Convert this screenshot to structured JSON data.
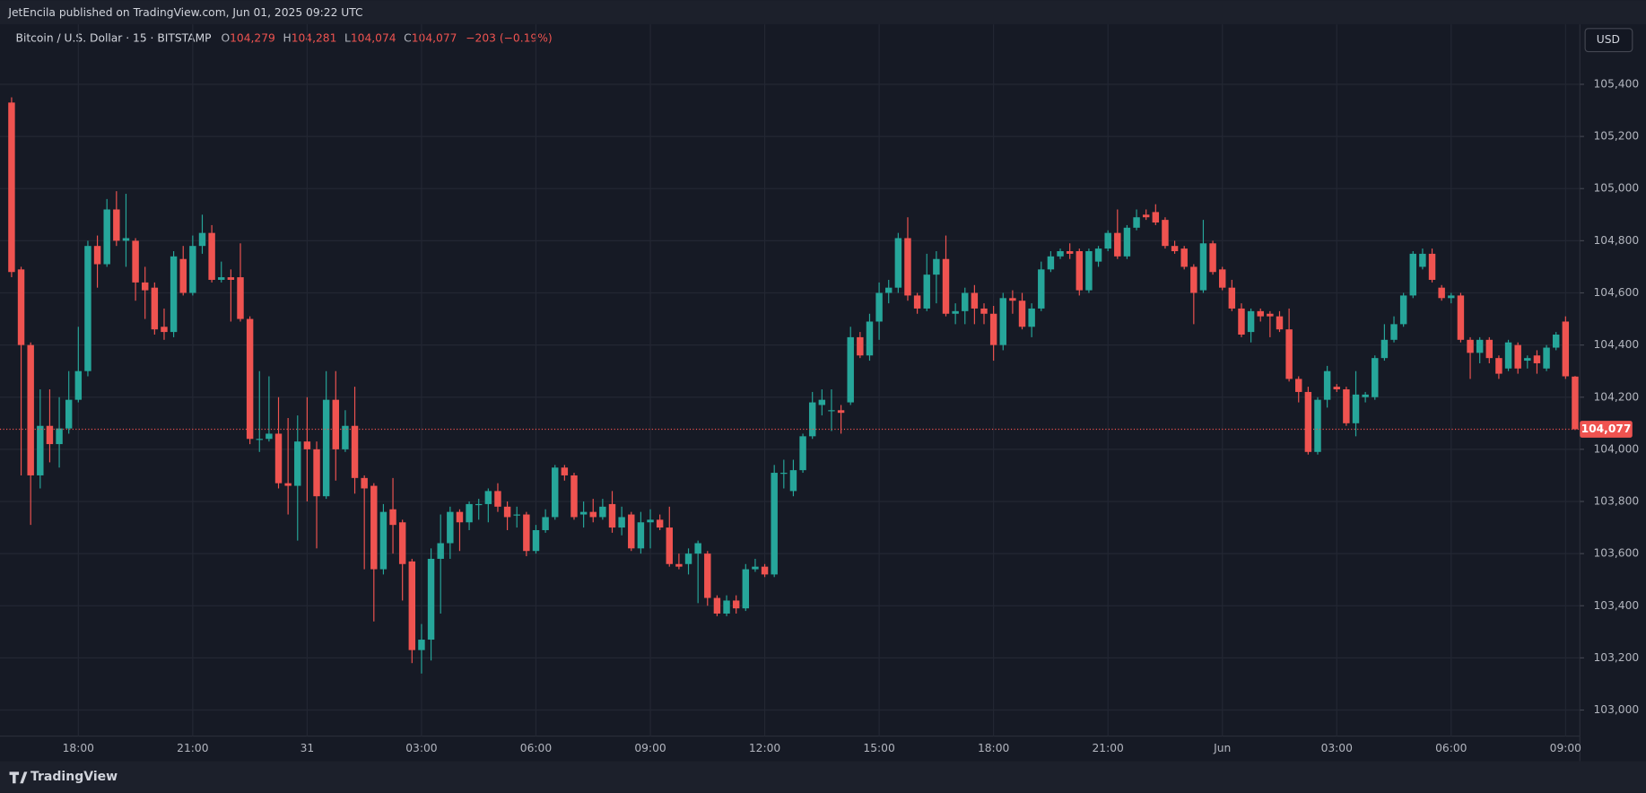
{
  "header": {
    "publisher": "JetEncila published on TradingView.com, Jun 01, 2025 09:22 UTC"
  },
  "legend": {
    "symbol": "Bitcoin / U.S. Dollar · 15 · BITSTAMP",
    "open_key": "O",
    "open": "104,279",
    "high_key": "H",
    "high": "104,281",
    "low_key": "L",
    "low": "104,074",
    "close_key": "C",
    "close": "104,077",
    "change": "−203 (−0.19%)"
  },
  "currency_button": "USD",
  "footer": {
    "brand": "TradingView"
  },
  "chart_data": {
    "type": "candlestick",
    "up_color": "#26a69a",
    "down_color": "#ef5350",
    "grid": true,
    "ylim": [
      102900,
      105630
    ],
    "yticks": [
      {
        "value": 103000,
        "label": "103,000"
      },
      {
        "value": 103200,
        "label": "103,200"
      },
      {
        "value": 103400,
        "label": "103,400"
      },
      {
        "value": 103600,
        "label": "103,600"
      },
      {
        "value": 103800,
        "label": "103,800"
      },
      {
        "value": 104000,
        "label": "104,000"
      },
      {
        "value": 104200,
        "label": "104,200"
      },
      {
        "value": 104400,
        "label": "104,400"
      },
      {
        "value": 104600,
        "label": "104,600"
      },
      {
        "value": 104800,
        "label": "104,800"
      },
      {
        "value": 105000,
        "label": "105,000"
      },
      {
        "value": 105200,
        "label": "105,200"
      },
      {
        "value": 105400,
        "label": "105,400"
      }
    ],
    "last_price": {
      "value": 104077,
      "label": "104,077"
    },
    "categories": [
      null,
      null,
      null,
      null,
      null,
      null,
      null,
      "18:00",
      null,
      null,
      null,
      null,
      null,
      null,
      null,
      null,
      null,
      null,
      null,
      "21:00",
      null,
      null,
      null,
      null,
      null,
      null,
      null,
      null,
      null,
      null,
      null,
      "31",
      null,
      null,
      null,
      null,
      null,
      null,
      null,
      null,
      null,
      null,
      null,
      "03:00",
      null,
      null,
      null,
      null,
      null,
      null,
      null,
      null,
      null,
      null,
      null,
      "06:00",
      null,
      null,
      null,
      null,
      null,
      null,
      null,
      null,
      null,
      null,
      null,
      "09:00",
      null,
      null,
      null,
      null,
      null,
      null,
      null,
      null,
      null,
      null,
      null,
      "12:00",
      null,
      null,
      null,
      null,
      null,
      null,
      null,
      null,
      null,
      null,
      null,
      "15:00",
      null,
      null,
      null,
      null,
      null,
      null,
      null,
      null,
      null,
      null,
      null,
      "18:00",
      null,
      null,
      null,
      null,
      null,
      null,
      null,
      null,
      null,
      null,
      null,
      "21:00",
      null,
      null,
      null,
      null,
      null,
      null,
      null,
      null,
      null,
      null,
      null,
      "Jun",
      null,
      null,
      null,
      null,
      null,
      null,
      null,
      null,
      null,
      null,
      null,
      "03:00",
      null,
      null,
      null,
      null,
      null,
      null,
      null,
      null,
      null,
      null,
      null,
      "06:00",
      null,
      null,
      null,
      null,
      null,
      null,
      null,
      null,
      null,
      null,
      null,
      "09:00",
      null
    ],
    "open": [
      105330,
      104690,
      104400,
      103900,
      104090,
      104020,
      104080,
      104190,
      104300,
      104780,
      104710,
      104920,
      104800,
      104800,
      104640,
      104620,
      104470,
      104450,
      104730,
      104600,
      104780,
      104830,
      104650,
      104660,
      104660,
      104500,
      104040,
      104040,
      104060,
      103870,
      103860,
      104030,
      104000,
      103820,
      104190,
      104000,
      104090,
      103890,
      103860,
      103540,
      103770,
      103720,
      103570,
      103230,
      103270,
      103580,
      103640,
      103760,
      103720,
      103790,
      103790,
      103840,
      103780,
      103750,
      103750,
      103610,
      103690,
      103740,
      103930,
      103900,
      103750,
      103760,
      103740,
      103790,
      103700,
      103750,
      103620,
      103720,
      103730,
      103700,
      103560,
      103560,
      103600,
      103600,
      103430,
      103370,
      103420,
      103390,
      103540,
      103550,
      103520,
      103910,
      103840,
      103920,
      104050,
      104170,
      104150,
      104150,
      104180,
      104430,
      104360,
      104490,
      104600,
      104620,
      104810,
      104590,
      104540,
      104670,
      104730,
      104520,
      104530,
      104600,
      104540,
      104520,
      104400,
      104580,
      104570,
      104470,
      104540,
      104690,
      104740,
      104760,
      104760,
      104610,
      104720,
      104770,
      104830,
      104740,
      104850,
      104900,
      104910,
      104880,
      104780,
      104770,
      104700,
      104610,
      104790,
      104690,
      104620,
      104540,
      104450,
      104530,
      104520,
      104510,
      104460,
      104270,
      104220,
      103990,
      104190,
      104240,
      104230,
      104100,
      104200,
      104200,
      104350,
      104420,
      104480,
      104590,
      104700,
      104750,
      104620,
      104580,
      104590,
      104420,
      104370,
      104420,
      104350,
      104310,
      104400,
      104340,
      104360,
      104310,
      104390,
      104490,
      104279
    ],
    "high": [
      105350,
      104700,
      104410,
      104230,
      104230,
      104200,
      104300,
      104470,
      104800,
      104820,
      104960,
      104990,
      104980,
      104810,
      104700,
      104640,
      104540,
      104760,
      104780,
      104820,
      104900,
      104860,
      104720,
      104690,
      104790,
      104510,
      104300,
      104280,
      104200,
      104120,
      104130,
      104200,
      104030,
      104300,
      104300,
      104150,
      104240,
      103900,
      103870,
      103790,
      103890,
      103730,
      103580,
      103330,
      103620,
      103750,
      103780,
      103770,
      103800,
      103810,
      103850,
      103870,
      103800,
      103780,
      103760,
      103710,
      103770,
      103940,
      103940,
      103910,
      103800,
      103810,
      103810,
      103840,
      103780,
      103760,
      103760,
      103770,
      103750,
      103780,
      103600,
      103620,
      103650,
      103610,
      103440,
      103440,
      103440,
      103560,
      103580,
      103560,
      103940,
      103960,
      103960,
      104060,
      104220,
      104230,
      104230,
      104170,
      104470,
      104450,
      104520,
      104640,
      104650,
      104830,
      104890,
      104600,
      104750,
      104760,
      104820,
      104560,
      104620,
      104630,
      104560,
      104550,
      104600,
      104610,
      104600,
      104560,
      104720,
      104760,
      104770,
      104790,
      104770,
      104770,
      104780,
      104840,
      104920,
      104860,
      104920,
      104920,
      104940,
      104890,
      104800,
      104780,
      104710,
      104880,
      104800,
      104700,
      104650,
      104560,
      104540,
      104540,
      104530,
      104530,
      104540,
      104280,
      104240,
      104200,
      104320,
      104250,
      104240,
      104300,
      104220,
      104360,
      104480,
      104510,
      104600,
      104760,
      104770,
      104770,
      104630,
      104600,
      104600,
      104430,
      104430,
      104430,
      104360,
      104420,
      104410,
      104360,
      104380,
      104400,
      104450,
      104510,
      104281
    ],
    "low": [
      104660,
      103900,
      103710,
      103850,
      103950,
      103930,
      104060,
      104180,
      104280,
      104620,
      104700,
      104780,
      104700,
      104570,
      104500,
      104440,
      104420,
      104430,
      104590,
      104590,
      104750,
      104640,
      104640,
      104490,
      104490,
      104020,
      103990,
      104030,
      103850,
      103750,
      103650,
      103800,
      103620,
      103810,
      103880,
      103990,
      103830,
      103540,
      103340,
      103520,
      103600,
      103420,
      103180,
      103140,
      103190,
      103370,
      103580,
      103610,
      103690,
      103730,
      103720,
      103760,
      103690,
      103700,
      103590,
      103600,
      103680,
      103730,
      103880,
      103730,
      103700,
      103720,
      103730,
      103680,
      103670,
      103610,
      103600,
      103620,
      103690,
      103550,
      103540,
      103520,
      103410,
      103400,
      103360,
      103360,
      103370,
      103380,
      103530,
      103510,
      103510,
      103850,
      103820,
      103910,
      104040,
      104130,
      104070,
      104060,
      104170,
      104350,
      104340,
      104420,
      104560,
      104600,
      104570,
      104520,
      104530,
      104560,
      104510,
      104480,
      104480,
      104480,
      104480,
      104340,
      104380,
      104520,
      104460,
      104430,
      104530,
      104680,
      104730,
      104730,
      104590,
      104600,
      104700,
      104760,
      104730,
      104730,
      104840,
      104880,
      104860,
      104770,
      104750,
      104690,
      104480,
      104600,
      104670,
      104610,
      104530,
      104430,
      104410,
      104490,
      104430,
      104450,
      104260,
      104180,
      103980,
      103980,
      104160,
      104220,
      104090,
      104050,
      104180,
      104190,
      104340,
      104410,
      104470,
      104580,
      104690,
      104640,
      104570,
      104560,
      104410,
      104270,
      104330,
      104330,
      104270,
      104300,
      104290,
      104310,
      104290,
      104300,
      104380,
      104270,
      104074
    ],
    "close": [
      104680,
      104400,
      103900,
      104090,
      104020,
      104080,
      104190,
      104300,
      104780,
      104710,
      104920,
      104800,
      104810,
      104640,
      104610,
      104460,
      104450,
      104740,
      104600,
      104780,
      104830,
      104650,
      104660,
      104650,
      104500,
      104040,
      104040,
      104060,
      103870,
      103860,
      104030,
      104000,
      103820,
      104190,
      104000,
      104090,
      103890,
      103850,
      103540,
      103760,
      103710,
      103560,
      103230,
      103270,
      103580,
      103640,
      103760,
      103720,
      103790,
      103790,
      103840,
      103780,
      103740,
      103750,
      103610,
      103690,
      103740,
      103930,
      103900,
      103740,
      103760,
      103740,
      103780,
      103700,
      103740,
      103620,
      103720,
      103730,
      103700,
      103560,
      103550,
      103600,
      103640,
      103430,
      103370,
      103420,
      103390,
      103540,
      103550,
      103520,
      103910,
      103910,
      103920,
      104050,
      104180,
      104190,
      104150,
      104140,
      104430,
      104360,
      104490,
      104600,
      104620,
      104810,
      104590,
      104540,
      104670,
      104730,
      104520,
      104530,
      104600,
      104540,
      104520,
      104400,
      104580,
      104570,
      104470,
      104540,
      104690,
      104740,
      104760,
      104750,
      104610,
      104760,
      104770,
      104830,
      104740,
      104850,
      104890,
      104890,
      104870,
      104780,
      104760,
      104700,
      104600,
      104790,
      104680,
      104620,
      104540,
      104440,
      104530,
      104510,
      104510,
      104460,
      104270,
      104220,
      103990,
      104190,
      104300,
      104230,
      104100,
      104210,
      104210,
      104350,
      104420,
      104480,
      104590,
      104750,
      104750,
      104650,
      104580,
      104590,
      104420,
      104370,
      104420,
      104350,
      104290,
      104410,
      104310,
      104350,
      104330,
      104390,
      104440,
      104280,
      104077
    ]
  }
}
